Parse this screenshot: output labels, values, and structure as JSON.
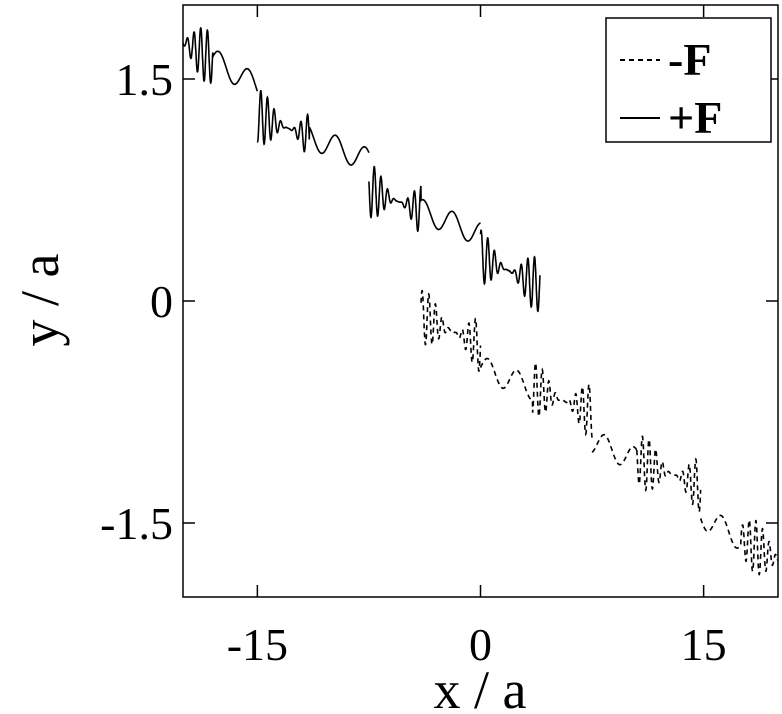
{
  "chart_data": {
    "type": "line",
    "title": "",
    "xlabel": "x / a",
    "ylabel": "y / a",
    "xlim": [
      -20,
      20
    ],
    "ylim": [
      -2,
      2
    ],
    "x_ticks": [
      -15,
      0,
      15
    ],
    "x_tick_labels": [
      "-15",
      "0",
      "15"
    ],
    "y_ticks": [
      -1.5,
      0,
      1.5
    ],
    "y_tick_labels": [
      "-1.5",
      "0",
      "1.5"
    ],
    "grid": false,
    "legend": {
      "position": "top-right",
      "entries": [
        "-F",
        "+F"
      ]
    },
    "series": [
      {
        "name": "-F",
        "style": "dashed",
        "segments": [
          {
            "x0": -4,
            "y0": -0.1,
            "x1": 0,
            "y1": -0.3,
            "dense_start": -4,
            "dense_end": 0
          },
          {
            "x0": 0,
            "y0": -0.45,
            "x1": 7.5,
            "y1": -0.75,
            "dense_start": 3.5,
            "dense_end": 7.5
          },
          {
            "x0": 7.5,
            "y0": -0.95,
            "x1": 14.8,
            "y1": -1.25,
            "dense_start": 10.5,
            "dense_end": 14.8
          },
          {
            "x0": 14.8,
            "y0": -1.45,
            "x1": 20,
            "y1": -1.75,
            "dense_start": 17.5,
            "dense_end": 20
          }
        ]
      },
      {
        "name": "+F",
        "style": "solid",
        "segments": [
          {
            "x0": -20,
            "y0": 1.75,
            "x1": -15,
            "y1": 1.45,
            "dense_start": -20,
            "dense_end": -18
          },
          {
            "x0": -15,
            "y0": 1.25,
            "x1": -7.5,
            "y1": 0.95,
            "dense_start": -15,
            "dense_end": -11.5
          },
          {
            "x0": -7.5,
            "y0": 0.75,
            "x1": 0,
            "y1": 0.45,
            "dense_start": -7.5,
            "dense_end": -4
          },
          {
            "x0": 0,
            "y0": 0.3,
            "x1": 4,
            "y1": 0.1,
            "dense_start": 0,
            "dense_end": 4
          }
        ]
      }
    ]
  }
}
